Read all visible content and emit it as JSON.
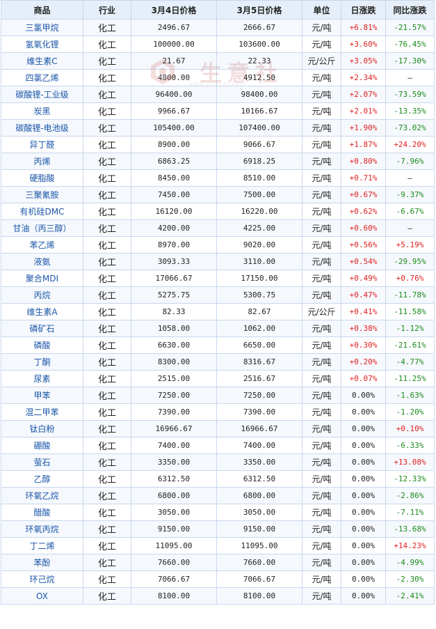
{
  "headers": [
    "商品",
    "行业",
    "3月4日价格",
    "3月5日价格",
    "单位",
    "日涨跌",
    "同比涨跌"
  ],
  "watermark": {
    "text": "生意社",
    "sub": "www.100ppi.com"
  },
  "rows": [
    {
      "name": "三氯甲烷",
      "industry": "化工",
      "p1": "2496.67",
      "p2": "2666.67",
      "unit": "元/吨",
      "day": "+6.81%",
      "yoy": "-21.57%"
    },
    {
      "name": "氢氧化锂",
      "industry": "化工",
      "p1": "100000.00",
      "p2": "103600.00",
      "unit": "元/吨",
      "day": "+3.60%",
      "yoy": "-76.45%"
    },
    {
      "name": "维生素C",
      "industry": "化工",
      "p1": "21.67",
      "p2": "22.33",
      "unit": "元/公斤",
      "day": "+3.05%",
      "yoy": "-17.30%"
    },
    {
      "name": "四氯乙烯",
      "industry": "化工",
      "p1": "4800.00",
      "p2": "4912.50",
      "unit": "元/吨",
      "day": "+2.34%",
      "yoy": "—"
    },
    {
      "name": "碳酸锂-工业级",
      "industry": "化工",
      "p1": "96400.00",
      "p2": "98400.00",
      "unit": "元/吨",
      "day": "+2.07%",
      "yoy": "-73.59%"
    },
    {
      "name": "炭黑",
      "industry": "化工",
      "p1": "9966.67",
      "p2": "10166.67",
      "unit": "元/吨",
      "day": "+2.01%",
      "yoy": "-13.35%"
    },
    {
      "name": "碳酸锂-电池级",
      "industry": "化工",
      "p1": "105400.00",
      "p2": "107400.00",
      "unit": "元/吨",
      "day": "+1.90%",
      "yoy": "-73.02%"
    },
    {
      "name": "异丁醛",
      "industry": "化工",
      "p1": "8900.00",
      "p2": "9066.67",
      "unit": "元/吨",
      "day": "+1.87%",
      "yoy": "+24.20%"
    },
    {
      "name": "丙烯",
      "industry": "化工",
      "p1": "6863.25",
      "p2": "6918.25",
      "unit": "元/吨",
      "day": "+0.80%",
      "yoy": "-7.96%"
    },
    {
      "name": "硬脂酸",
      "industry": "化工",
      "p1": "8450.00",
      "p2": "8510.00",
      "unit": "元/吨",
      "day": "+0.71%",
      "yoy": "—"
    },
    {
      "name": "三聚氰胺",
      "industry": "化工",
      "p1": "7450.00",
      "p2": "7500.00",
      "unit": "元/吨",
      "day": "+0.67%",
      "yoy": "-9.37%"
    },
    {
      "name": "有机硅DMC",
      "industry": "化工",
      "p1": "16120.00",
      "p2": "16220.00",
      "unit": "元/吨",
      "day": "+0.62%",
      "yoy": "-6.67%"
    },
    {
      "name": "甘油（丙三醇）",
      "industry": "化工",
      "p1": "4200.00",
      "p2": "4225.00",
      "unit": "元/吨",
      "day": "+0.60%",
      "yoy": "—"
    },
    {
      "name": "苯乙烯",
      "industry": "化工",
      "p1": "8970.00",
      "p2": "9020.00",
      "unit": "元/吨",
      "day": "+0.56%",
      "yoy": "+5.19%"
    },
    {
      "name": "液氨",
      "industry": "化工",
      "p1": "3093.33",
      "p2": "3110.00",
      "unit": "元/吨",
      "day": "+0.54%",
      "yoy": "-29.95%"
    },
    {
      "name": "聚合MDI",
      "industry": "化工",
      "p1": "17066.67",
      "p2": "17150.00",
      "unit": "元/吨",
      "day": "+0.49%",
      "yoy": "+0.76%"
    },
    {
      "name": "丙烷",
      "industry": "化工",
      "p1": "5275.75",
      "p2": "5300.75",
      "unit": "元/吨",
      "day": "+0.47%",
      "yoy": "-11.78%"
    },
    {
      "name": "维生素A",
      "industry": "化工",
      "p1": "82.33",
      "p2": "82.67",
      "unit": "元/公斤",
      "day": "+0.41%",
      "yoy": "-11.58%"
    },
    {
      "name": "磷矿石",
      "industry": "化工",
      "p1": "1058.00",
      "p2": "1062.00",
      "unit": "元/吨",
      "day": "+0.38%",
      "yoy": "-1.12%"
    },
    {
      "name": "磷酸",
      "industry": "化工",
      "p1": "6630.00",
      "p2": "6650.00",
      "unit": "元/吨",
      "day": "+0.30%",
      "yoy": "-21.61%"
    },
    {
      "name": "丁酮",
      "industry": "化工",
      "p1": "8300.00",
      "p2": "8316.67",
      "unit": "元/吨",
      "day": "+0.20%",
      "yoy": "-4.77%"
    },
    {
      "name": "尿素",
      "industry": "化工",
      "p1": "2515.00",
      "p2": "2516.67",
      "unit": "元/吨",
      "day": "+0.07%",
      "yoy": "-11.25%"
    },
    {
      "name": "甲苯",
      "industry": "化工",
      "p1": "7250.00",
      "p2": "7250.00",
      "unit": "元/吨",
      "day": "0.00%",
      "yoy": "-1.63%"
    },
    {
      "name": "混二甲苯",
      "industry": "化工",
      "p1": "7390.00",
      "p2": "7390.00",
      "unit": "元/吨",
      "day": "0.00%",
      "yoy": "-1.20%"
    },
    {
      "name": "钛白粉",
      "industry": "化工",
      "p1": "16966.67",
      "p2": "16966.67",
      "unit": "元/吨",
      "day": "0.00%",
      "yoy": "+0.10%"
    },
    {
      "name": "硼酸",
      "industry": "化工",
      "p1": "7400.00",
      "p2": "7400.00",
      "unit": "元/吨",
      "day": "0.00%",
      "yoy": "-6.33%"
    },
    {
      "name": "萤石",
      "industry": "化工",
      "p1": "3350.00",
      "p2": "3350.00",
      "unit": "元/吨",
      "day": "0.00%",
      "yoy": "+13.08%"
    },
    {
      "name": "乙醇",
      "industry": "化工",
      "p1": "6312.50",
      "p2": "6312.50",
      "unit": "元/吨",
      "day": "0.00%",
      "yoy": "-12.33%"
    },
    {
      "name": "环氧乙烷",
      "industry": "化工",
      "p1": "6800.00",
      "p2": "6800.00",
      "unit": "元/吨",
      "day": "0.00%",
      "yoy": "-2.86%"
    },
    {
      "name": "醋酸",
      "industry": "化工",
      "p1": "3050.00",
      "p2": "3050.00",
      "unit": "元/吨",
      "day": "0.00%",
      "yoy": "-7.11%"
    },
    {
      "name": "环氧丙烷",
      "industry": "化工",
      "p1": "9150.00",
      "p2": "9150.00",
      "unit": "元/吨",
      "day": "0.00%",
      "yoy": "-13.68%"
    },
    {
      "name": "丁二烯",
      "industry": "化工",
      "p1": "11095.00",
      "p2": "11095.00",
      "unit": "元/吨",
      "day": "0.00%",
      "yoy": "+14.23%"
    },
    {
      "name": "苯酚",
      "industry": "化工",
      "p1": "7660.00",
      "p2": "7660.00",
      "unit": "元/吨",
      "day": "0.00%",
      "yoy": "-4.99%"
    },
    {
      "name": "环己烷",
      "industry": "化工",
      "p1": "7066.67",
      "p2": "7066.67",
      "unit": "元/吨",
      "day": "0.00%",
      "yoy": "-2.30%"
    },
    {
      "name": "OX",
      "industry": "化工",
      "p1": "8100.00",
      "p2": "8100.00",
      "unit": "元/吨",
      "day": "0.00%",
      "yoy": "-2.41%"
    }
  ]
}
